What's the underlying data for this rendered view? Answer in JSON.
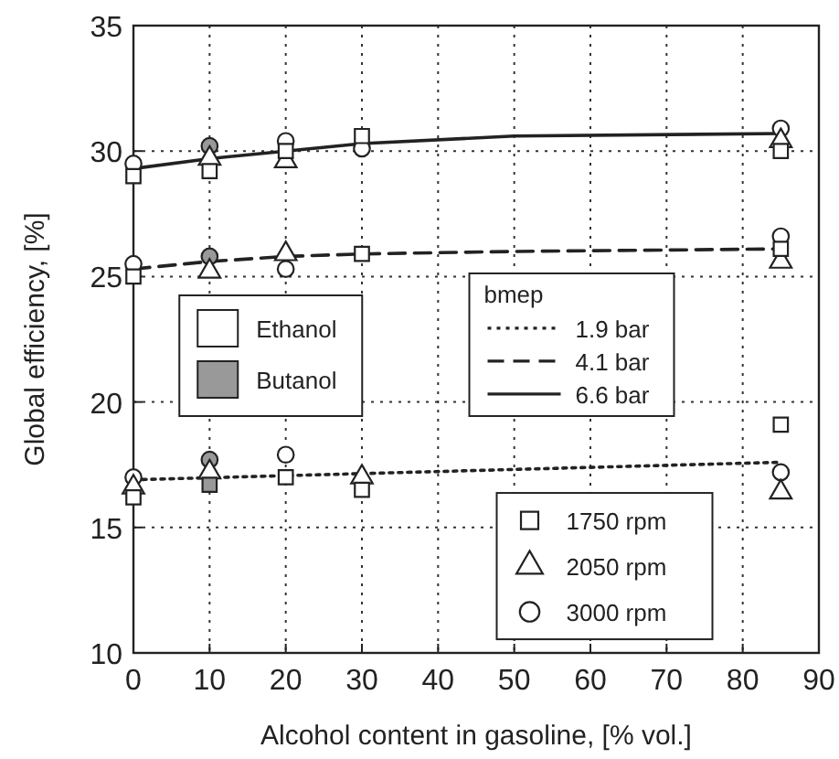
{
  "chart_data": {
    "type": "scatter",
    "xlabel": "Alcohol content in gasoline, [% vol.]",
    "ylabel": "Global efficiency, [%]",
    "xlim": [
      0,
      90
    ],
    "ylim": [
      10,
      35
    ],
    "xticks": [
      0,
      10,
      20,
      30,
      40,
      50,
      60,
      70,
      80,
      90
    ],
    "yticks": [
      10,
      15,
      20,
      25,
      30,
      35
    ],
    "grid": true,
    "legend": "bottom left",
    "legend_title": "bmep",
    "series": [
      {
        "name": "1.9 bar",
        "type": "line",
        "line_style": "dotted",
        "color": "#222222",
        "x": [
          0,
          85
        ],
        "values": [
          16.9,
          17.6
        ]
      },
      {
        "name": "4.1 bar",
        "type": "line",
        "line_style": "dashed",
        "color": "#222222",
        "x": [
          0,
          10,
          20,
          30,
          50,
          85
        ],
        "values": [
          25.3,
          25.6,
          25.8,
          25.9,
          26.0,
          26.1
        ]
      },
      {
        "name": "6.6 bar",
        "type": "line",
        "line_style": "solid",
        "color": "#222222",
        "x": [
          0,
          10,
          20,
          30,
          50,
          85
        ],
        "values": [
          29.3,
          29.7,
          30.0,
          30.3,
          30.6,
          30.7
        ]
      },
      {
        "name": "1750 rpm",
        "marker": "square",
        "color": "#222222",
        "x": [
          0,
          10,
          20,
          30,
          85,
          0,
          30,
          85,
          0,
          10,
          20,
          30,
          85
        ],
        "values": [
          29.0,
          29.2,
          30.0,
          30.6,
          30.0,
          25.0,
          25.9,
          26.1,
          16.2,
          16.7,
          17.0,
          16.5,
          19.1
        ],
        "colors": [
          "#ffffff",
          "#ffffff",
          "#ffffff",
          "#ffffff",
          "#ffffff",
          "#ffffff",
          "#ffffff",
          "#ffffff",
          "#ffffff",
          "#999999",
          "#ffffff",
          "#ffffff",
          "#ffffff"
        ]
      },
      {
        "name": "2050 rpm",
        "marker": "triangle",
        "color": "#222222",
        "x": [
          10,
          20,
          85,
          10,
          20,
          85,
          0,
          10,
          30,
          85
        ],
        "values": [
          29.7,
          29.6,
          30.4,
          25.2,
          25.9,
          25.6,
          16.6,
          17.2,
          17.0,
          16.4
        ],
        "colors": [
          "#ffffff",
          "#ffffff",
          "#ffffff",
          "#ffffff",
          "#ffffff",
          "#ffffff",
          "#ffffff",
          "#ffffff",
          "#ffffff",
          "#ffffff"
        ]
      },
      {
        "name": "3000 rpm",
        "marker": "circle",
        "color": "#222222",
        "x": [
          0,
          10,
          20,
          30,
          85,
          0,
          10,
          20,
          85,
          0,
          10,
          20,
          85
        ],
        "values": [
          29.5,
          30.2,
          30.4,
          30.1,
          30.9,
          25.5,
          25.8,
          25.3,
          26.6,
          17.0,
          17.7,
          17.9,
          17.2
        ],
        "colors": [
          "#ffffff",
          "#999999",
          "#ffffff",
          "#ffffff",
          "#ffffff",
          "#ffffff",
          "#999999",
          "#ffffff",
          "#ffffff",
          "#ffffff",
          "#999999",
          "#ffffff",
          "#ffffff"
        ]
      },
      {
        "name": "Ethanol",
        "marker": "square",
        "color": "#ffffff"
      },
      {
        "name": "Butanol",
        "marker": "square",
        "color": "#999999"
      }
    ]
  }
}
